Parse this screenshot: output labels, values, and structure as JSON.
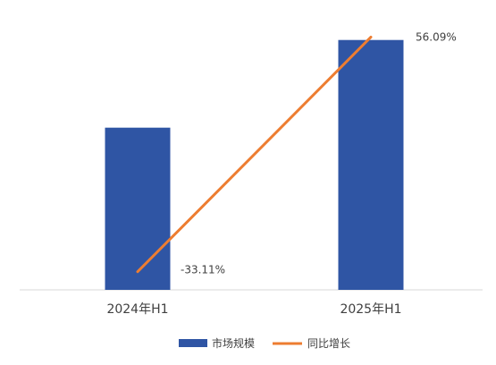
{
  "chart_data": {
    "type": "bar",
    "categories": [
      "2024年H1",
      "2025年H1"
    ],
    "series": [
      {
        "name": "市场规模",
        "type": "bar",
        "values": [
          18.5,
          28.5
        ],
        "color": "#2F55A4"
      },
      {
        "name": "同比增长",
        "type": "line",
        "values": [
          -33.11,
          56.09
        ],
        "labels": [
          "-33.11%",
          "56.09%"
        ],
        "color": "#ED7D31"
      }
    ],
    "ylim_bar": [
      0,
      30
    ],
    "ylim_line": [
      -40,
      60
    ],
    "legend_position": "bottom",
    "grid": false
  }
}
